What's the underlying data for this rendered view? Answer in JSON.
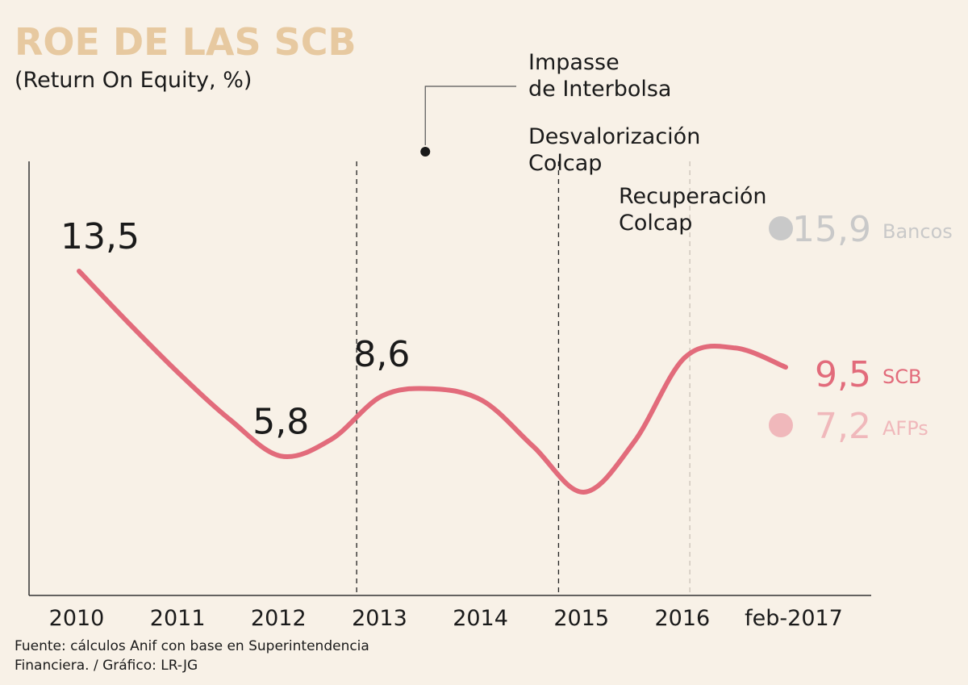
{
  "colors": {
    "background": "#f8f1e7",
    "title": "#e7c9a0",
    "scb": "#e26b7b",
    "afps": "#f0b8bb",
    "bancos": "#c9c9c9",
    "text": "#1a1a1a",
    "axis": "#333333"
  },
  "chart_data": {
    "type": "line",
    "title": "ROE DE LAS SCB",
    "subtitle": "(Return On Equity, %)",
    "categories": [
      "2010",
      "2011",
      "2012",
      "2013",
      "2014",
      "2015",
      "2016",
      "feb-2017"
    ],
    "series": [
      {
        "name": "SCB",
        "x": [
          2010,
          2010.5,
          2011,
          2011.5,
          2012,
          2012.5,
          2013,
          2013.5,
          2014,
          2014.5,
          2015,
          2015.5,
          2016,
          2016.5,
          2017
        ],
        "values": [
          13.5,
          11.3,
          9.2,
          7.3,
          5.8,
          6.5,
          8.3,
          8.6,
          8.1,
          6.2,
          4.3,
          6.4,
          9.9,
          10.3,
          9.5
        ]
      }
    ],
    "data_labels": [
      {
        "x": 2010,
        "value": 13.5,
        "text": "13,5"
      },
      {
        "x": 2012,
        "value": 5.8,
        "text": "5,8"
      },
      {
        "x": 2013,
        "value": 8.6,
        "text": "8,6"
      }
    ],
    "end_labels": [
      {
        "name": "Bancos",
        "value": 15.9,
        "text": "15,9",
        "marker": true
      },
      {
        "name": "SCB",
        "value": 9.5,
        "text": "9,5",
        "marker": false
      },
      {
        "name": "AFPs",
        "value": 7.2,
        "text": "7,2",
        "marker": true
      }
    ],
    "events": [
      {
        "x": 2013.43,
        "lines": [
          "Impasse",
          "de Interbolsa"
        ],
        "style": "leader"
      },
      {
        "x": 2012.75,
        "lines": [],
        "style": "dashed"
      },
      {
        "x": 2014.75,
        "lines": [
          "Desvalorización",
          "Colcap"
        ],
        "style": "dashed"
      },
      {
        "x": 2016.05,
        "lines": [
          "Recuperación",
          "Colcap"
        ],
        "style": "light-dashed"
      }
    ],
    "ylim": [
      0,
      18
    ],
    "source": [
      "Fuente: cálculos Anif con base en Superintendencia",
      "Financiera. / Gráfico: LR-JG"
    ]
  }
}
